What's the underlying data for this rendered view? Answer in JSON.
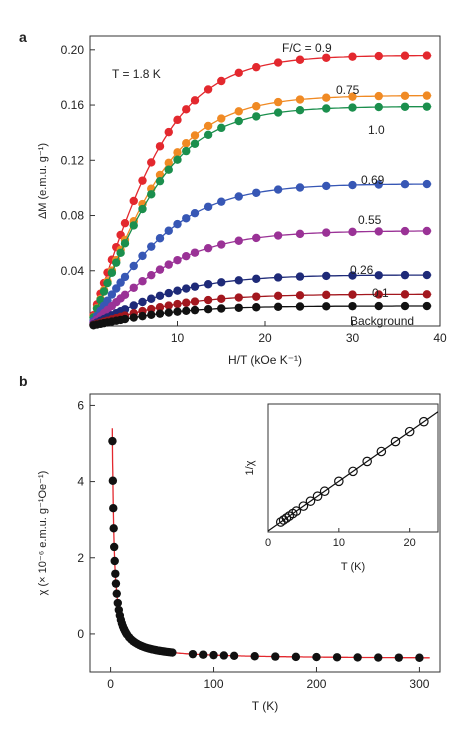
{
  "chart_data": [
    {
      "panel": "a",
      "type": "line",
      "annotation": "T = 1.8 K",
      "xlabel": "H/T (kOe K⁻¹)",
      "ylabel": "ΔM (e.m.u. g⁻¹)",
      "xlim": [
        0,
        40
      ],
      "ylim": [
        0,
        0.21
      ],
      "xticks": [
        10,
        20,
        30,
        40
      ],
      "yticks": [
        0.04,
        0.08,
        0.12,
        0.16,
        0.2
      ],
      "ytick_labels": [
        "0.04",
        "0.08",
        "0.12",
        "0.16",
        "0.20"
      ],
      "x": [
        0.4,
        0.8,
        1.2,
        1.6,
        2.0,
        2.5,
        3.0,
        3.5,
        4.0,
        5.0,
        6.0,
        7.0,
        8.0,
        9.0,
        10.0,
        11.0,
        12.0,
        13.5,
        15.0,
        17.0,
        19.0,
        21.5,
        24.0,
        27.0,
        30.0,
        33.0,
        36.0,
        38.5
      ],
      "series": [
        {
          "name": "F/C = 0.9",
          "color": "#e3282e",
          "asymptote": 0.196,
          "k": 0.1
        },
        {
          "name": "0.75",
          "color": "#f08a24",
          "asymptote": 0.167,
          "k": 0.098
        },
        {
          "name": "1.0",
          "color": "#1b8f4d",
          "asymptote": 0.159,
          "k": 0.099
        },
        {
          "name": "0.69",
          "color": "#3757b5",
          "asymptote": 0.103,
          "k": 0.09
        },
        {
          "name": "0.55",
          "color": "#9a3296",
          "asymptote": 0.069,
          "k": 0.085
        },
        {
          "name": "0.26",
          "color": "#1e2a78",
          "asymptote": 0.037,
          "k": 0.085
        },
        {
          "name": "0.1",
          "color": "#a3171e",
          "asymptote": 0.023,
          "k": 0.085
        },
        {
          "name": "Background",
          "color": "#111111",
          "asymptote": 0.0145,
          "k": 0.09
        }
      ]
    },
    {
      "panel": "b",
      "type": "line",
      "xlabel": "T (K)",
      "ylabel": "χ (× 10⁻⁶ e.m.u. g⁻¹Oe⁻¹)",
      "xlim": [
        -20,
        320
      ],
      "ylim": [
        -1,
        6.3
      ],
      "xticks": [
        0,
        100,
        200,
        300
      ],
      "yticks": [
        0,
        2,
        4,
        6
      ],
      "x": [
        1.8,
        2.2,
        2.6,
        3.0,
        3.5,
        4.0,
        4.6,
        5.2,
        6.0,
        7.0,
        8.0,
        9.0,
        10,
        11,
        12,
        13,
        14,
        15,
        16,
        18,
        20,
        22,
        24,
        26,
        28,
        30,
        32,
        34,
        36,
        38,
        40,
        42,
        44,
        46,
        48,
        50,
        52,
        54,
        56,
        58,
        60,
        80,
        90,
        100,
        110,
        120,
        140,
        160,
        180,
        200,
        220,
        240,
        260,
        280,
        300
      ],
      "curie_C": 10.3,
      "chi0": -0.66,
      "color": "#e3282e",
      "inset": {
        "xlabel": "T (K)",
        "ylabel": "1/χ",
        "xlim": [
          0,
          24
        ],
        "xticks": [
          0,
          10,
          20
        ],
        "x": [
          1.8,
          2.2,
          2.6,
          3.0,
          3.5,
          4.0,
          5.0,
          6.0,
          7.0,
          8.0,
          10,
          12,
          14,
          16,
          18,
          20,
          22
        ],
        "slope": 0.096,
        "intercept": 0.02
      }
    }
  ],
  "panel_labels": [
    "a",
    "b"
  ]
}
